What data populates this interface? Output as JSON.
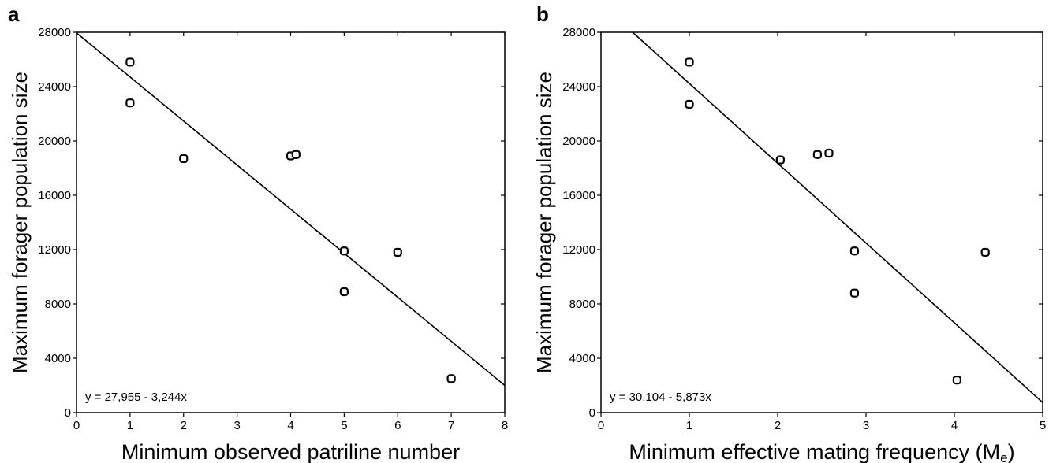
{
  "chart_data": [
    {
      "panel_label": "a",
      "type": "scatter",
      "xlabel": "Minimum observed patriline number",
      "ylabel": "Maximum forager population size",
      "xlim": [
        0,
        8
      ],
      "ylim": [
        0,
        28000
      ],
      "xticks": [
        0,
        1,
        2,
        3,
        4,
        5,
        6,
        7,
        8
      ],
      "yticks": [
        0,
        4000,
        8000,
        12000,
        16000,
        20000,
        24000,
        28000
      ],
      "points": [
        {
          "x": 1,
          "y": 25800
        },
        {
          "x": 1,
          "y": 22800
        },
        {
          "x": 2,
          "y": 18700
        },
        {
          "x": 4,
          "y": 18900
        },
        {
          "x": 4.1,
          "y": 19000
        },
        {
          "x": 5,
          "y": 11900
        },
        {
          "x": 5,
          "y": 8900
        },
        {
          "x": 6,
          "y": 11800
        },
        {
          "x": 7,
          "y": 2500
        }
      ],
      "fit": {
        "intercept": 27955,
        "slope": -3244
      },
      "equation_text": "y = 27,955 - 3,244x",
      "grid": false
    },
    {
      "panel_label": "b",
      "type": "scatter",
      "xlabel": "Minimum effective mating frequency (M",
      "xlabel_subscript": "e",
      "xlabel_suffix": ")",
      "ylabel": "Maximum forager population size",
      "xlim": [
        0,
        5
      ],
      "ylim": [
        0,
        28000
      ],
      "xticks": [
        0,
        1,
        2,
        3,
        4,
        5
      ],
      "yticks": [
        0,
        4000,
        8000,
        12000,
        16000,
        20000,
        24000,
        28000
      ],
      "points": [
        {
          "x": 1,
          "y": 25800
        },
        {
          "x": 1,
          "y": 22700
        },
        {
          "x": 2.03,
          "y": 18600
        },
        {
          "x": 2.45,
          "y": 19000
        },
        {
          "x": 2.58,
          "y": 19100
        },
        {
          "x": 2.87,
          "y": 11900
        },
        {
          "x": 2.87,
          "y": 8800
        },
        {
          "x": 4.35,
          "y": 11800
        },
        {
          "x": 4.03,
          "y": 2400
        }
      ],
      "fit": {
        "intercept": 30104,
        "slope": -5873
      },
      "equation_text": "y = 30,104 - 5,873x",
      "grid": false
    }
  ]
}
